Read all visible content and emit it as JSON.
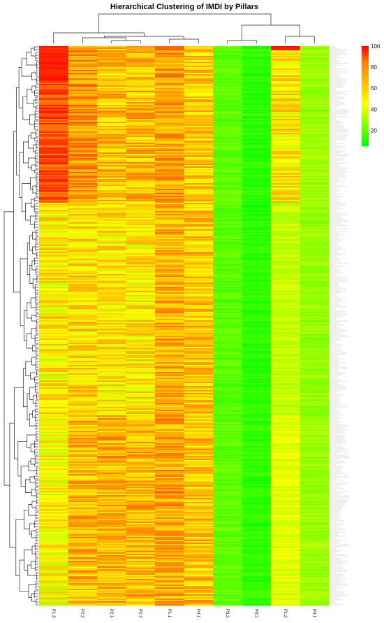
{
  "chart_data": {
    "type": "heatmap",
    "title": "Hierarchical Clustering of IMDI by Pillars",
    "columns": [
      "P1.3",
      "P2.2",
      "P2.1",
      "P2.3",
      "P1.1",
      "P4.1",
      "P3.2",
      "P4.2",
      "P1.2",
      "P3.1"
    ],
    "row_count": 400,
    "value_range": [
      5,
      100
    ],
    "legend": {
      "ticks": [
        100,
        80,
        60,
        40,
        20
      ],
      "placement": "top-right"
    },
    "colors": {
      "low": "#00ff00",
      "mid": "#ffff00",
      "high": "#ff0000"
    },
    "row_dendrogram": true,
    "column_dendrogram": true,
    "column_profiles": {
      "P1.3": {
        "top_block_mean": 84,
        "mid_block_mean": 48,
        "bottom_block_mean": 46
      },
      "P2.2": {
        "top_block_mean": 68,
        "mid_block_mean": 52,
        "bottom_block_mean": 60
      },
      "P2.1": {
        "top_block_mean": 58,
        "mid_block_mean": 50,
        "bottom_block_mean": 62
      },
      "P2.3": {
        "top_block_mean": 60,
        "mid_block_mean": 50,
        "bottom_block_mean": 60
      },
      "P1.1": {
        "top_block_mean": 66,
        "mid_block_mean": 62,
        "bottom_block_mean": 64
      },
      "P4.1": {
        "top_block_mean": 56,
        "mid_block_mean": 56,
        "bottom_block_mean": 58
      },
      "P3.2": {
        "top_block_mean": 20,
        "mid_block_mean": 19,
        "bottom_block_mean": 20
      },
      "P4.2": {
        "top_block_mean": 12,
        "mid_block_mean": 12,
        "bottom_block_mean": 12
      },
      "P1.2": {
        "top_block_mean": 50,
        "mid_block_mean": 36,
        "bottom_block_mean": 40
      },
      "P3.1": {
        "top_block_mean": 30,
        "mid_block_mean": 28,
        "bottom_block_mean": 30
      }
    }
  }
}
